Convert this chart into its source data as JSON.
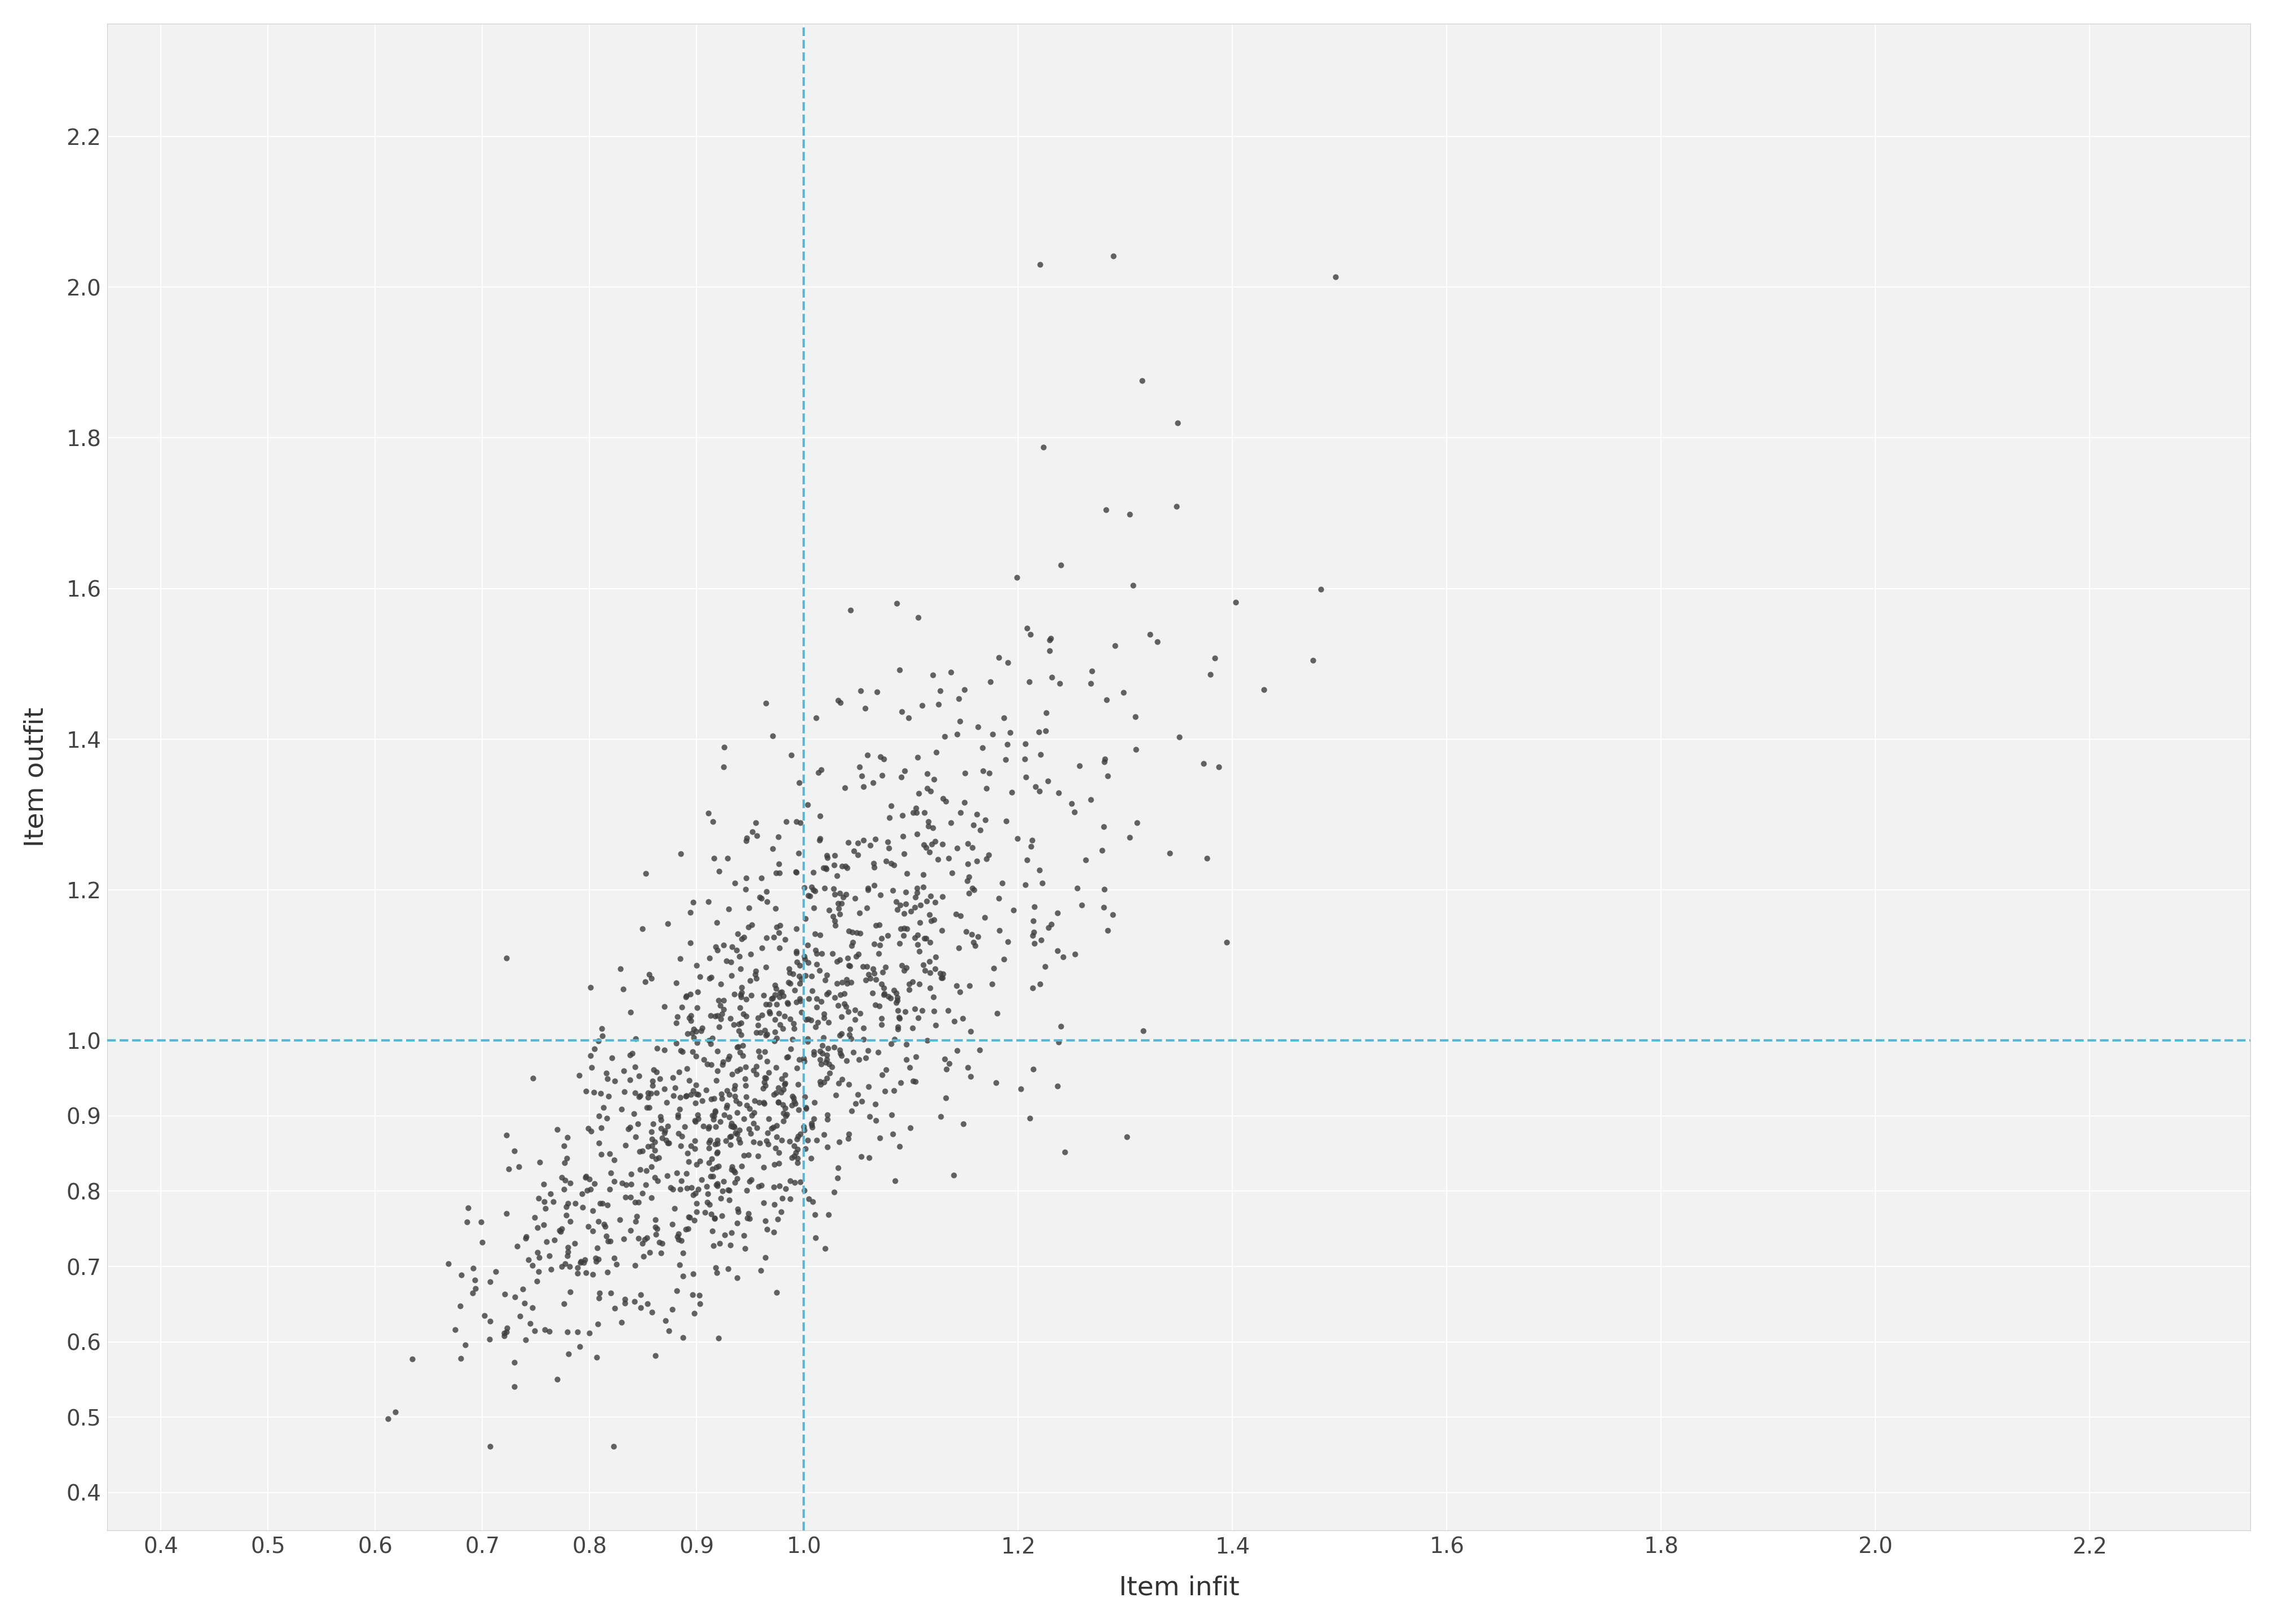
{
  "title": "",
  "xlabel": "Item infit",
  "ylabel": "Item outfit",
  "xlim": [
    0.35,
    2.35
  ],
  "ylim": [
    0.35,
    2.35
  ],
  "xticks": [
    0.4,
    0.5,
    0.6,
    0.7,
    0.8,
    0.9,
    1.0,
    1.2,
    1.4,
    1.6,
    1.8,
    2.0,
    2.2
  ],
  "yticks": [
    0.4,
    0.5,
    0.6,
    0.7,
    0.8,
    0.9,
    1.0,
    1.2,
    1.4,
    1.6,
    1.8,
    2.0,
    2.2
  ],
  "vline_x": 1.0,
  "hline_y": 1.0,
  "dashed_color": "#5BB8D4",
  "point_color": "#3D3D3D",
  "point_size": 55,
  "point_alpha": 0.8,
  "n_items": 1339,
  "background_color": "#FFFFFF",
  "plot_bg_color": "#F2F2F2",
  "grid_color": "#FFFFFF",
  "grid_linewidth": 1.5,
  "xlabel_fontsize": 34,
  "ylabel_fontsize": 34,
  "tick_fontsize": 28,
  "seed": 12345
}
